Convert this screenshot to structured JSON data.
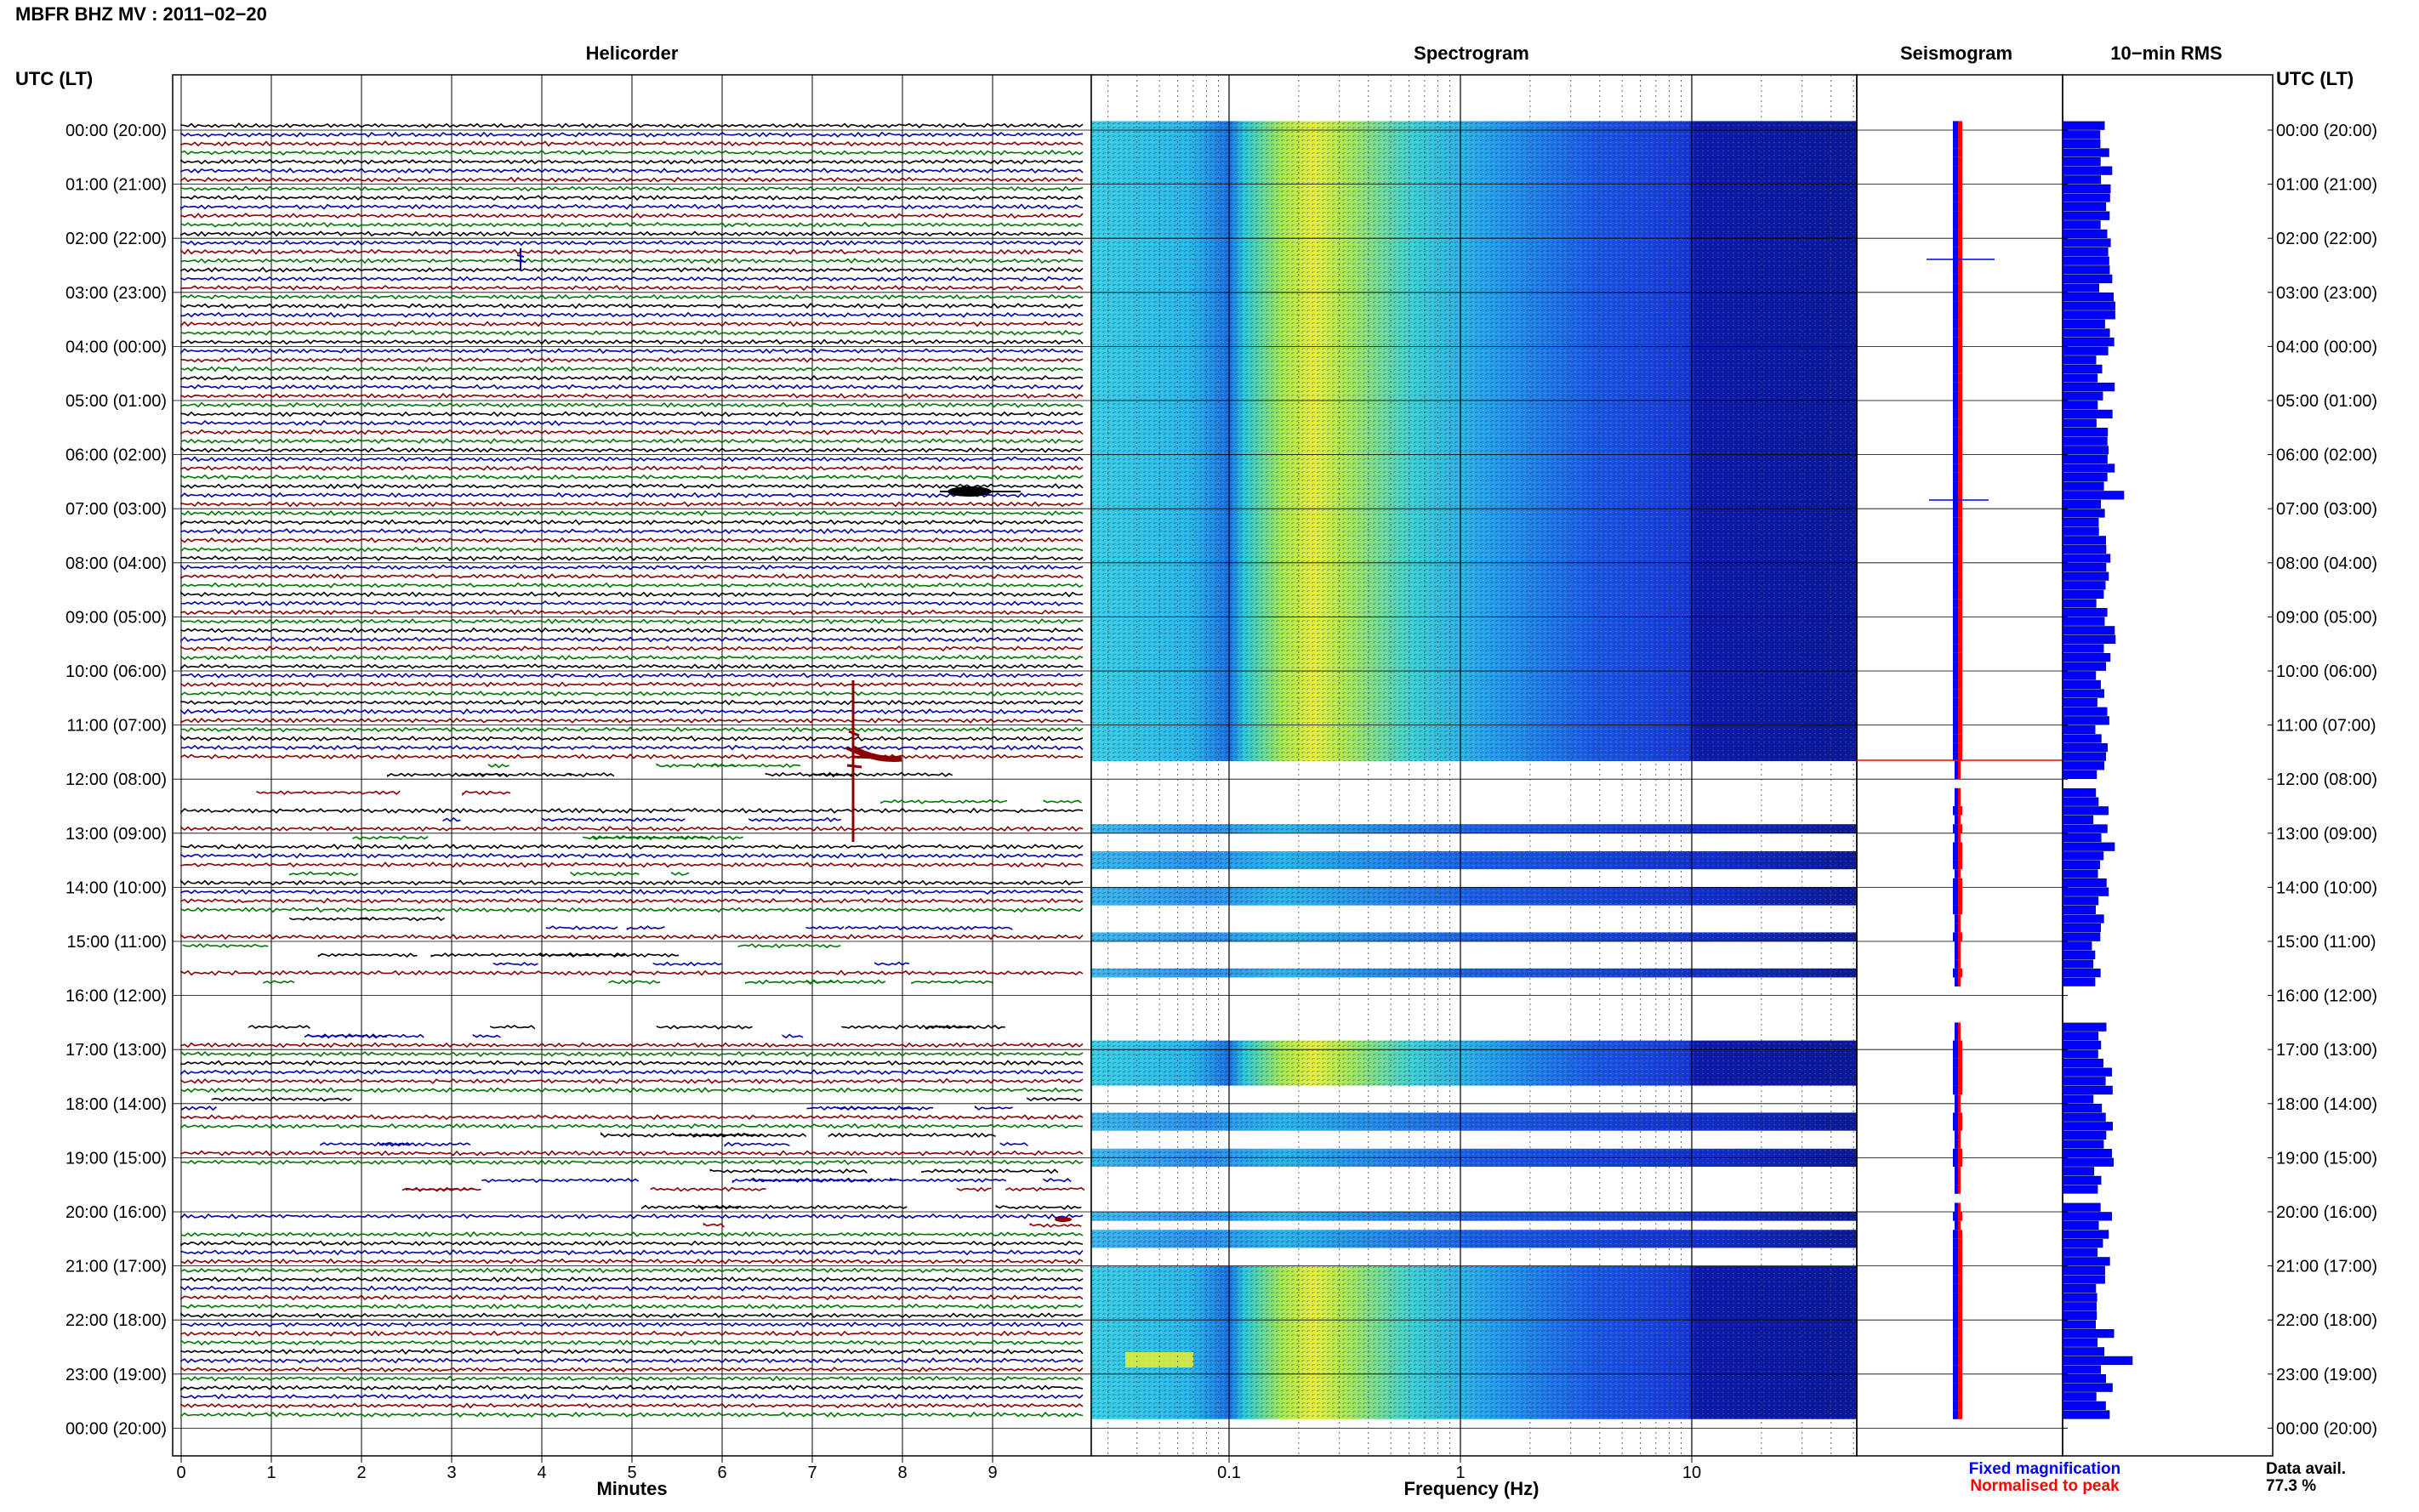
{
  "title": "MBFR BHZ MV : 2011−02−20",
  "panels": {
    "helicorder": "Helicorder",
    "spectrogram": "Spectrogram",
    "seismogram": "Seismogram",
    "rms": "10−min RMS"
  },
  "time_axis_label": "UTC (LT)",
  "time_labels": [
    "00:00 (20:00)",
    "01:00 (21:00)",
    "02:00 (22:00)",
    "03:00 (23:00)",
    "04:00 (00:00)",
    "05:00 (01:00)",
    "06:00 (02:00)",
    "07:00 (03:00)",
    "08:00 (04:00)",
    "09:00 (05:00)",
    "10:00 (06:00)",
    "11:00 (07:00)",
    "12:00 (08:00)",
    "13:00 (09:00)",
    "14:00 (10:00)",
    "15:00 (11:00)",
    "16:00 (12:00)",
    "17:00 (13:00)",
    "18:00 (14:00)",
    "19:00 (15:00)",
    "20:00 (16:00)",
    "21:00 (17:00)",
    "22:00 (18:00)",
    "23:00 (19:00)",
    "00:00 (20:00)"
  ],
  "legend": {
    "fixed": "Fixed magnification",
    "normalised": "Normalised to peak",
    "fixed_color": "#0000ff",
    "normalised_color": "#ff0000"
  },
  "data_avail": {
    "label": "Data avail.",
    "value": "77.3 %"
  },
  "trace_colors": [
    "#000000",
    "#0000aa",
    "#8b0000",
    "#007700"
  ],
  "chart_data": [
    {
      "type": "line",
      "panel": "Helicorder",
      "xlabel": "Minutes",
      "xlim": [
        0,
        10
      ],
      "x_ticks": [
        "0",
        "1",
        "2",
        "3",
        "4",
        "5",
        "6",
        "7",
        "8",
        "9"
      ],
      "rows_per_hour": 6,
      "rows_total": 144,
      "events": [
        {
          "time": "02:00",
          "minute": 3.8,
          "amplitude": "small"
        },
        {
          "time": "06:50",
          "minute": 8.7,
          "amplitude": "medium"
        },
        {
          "time": "11:50",
          "minute": 7.5,
          "amplitude": "large"
        },
        {
          "time": "20:00",
          "minute": 9.8,
          "amplitude": "small"
        }
      ]
    },
    {
      "type": "heatmap",
      "panel": "Spectrogram",
      "xlabel": "Frequency (Hz)",
      "xscale": "log",
      "x_ticks": [
        "0.1",
        "1",
        "10"
      ],
      "peak_frequency_hz": 0.2
    },
    {
      "type": "line",
      "panel": "Seismogram",
      "series": [
        {
          "name": "Fixed magnification"
        },
        {
          "name": "Normalised to peak"
        }
      ]
    },
    {
      "type": "bar",
      "panel": "10−min RMS",
      "note_peak_time": "11:50"
    }
  ]
}
